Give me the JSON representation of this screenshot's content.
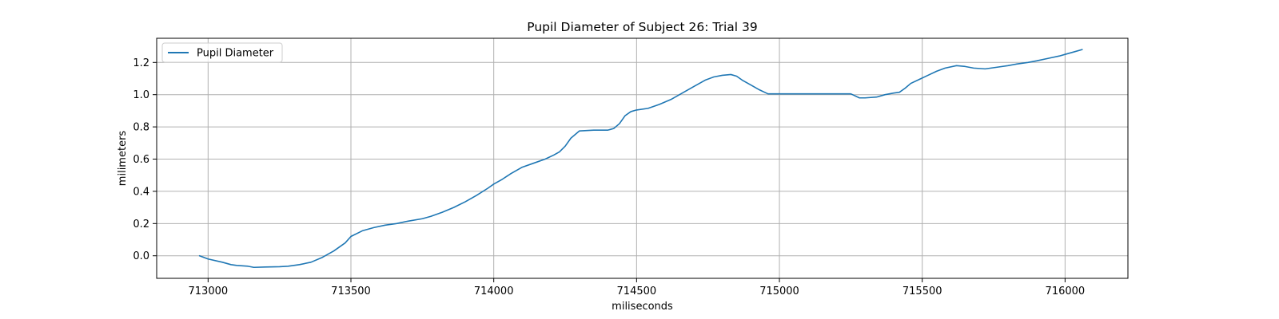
{
  "chart_data": {
    "type": "line",
    "title": "Pupil Diameter of Subject 26: Trial 39",
    "xlabel": "miliseconds",
    "ylabel": "milimeters",
    "xlim": [
      712820,
      716220
    ],
    "ylim": [
      -0.14,
      1.35
    ],
    "xticks": [
      713000,
      713500,
      714000,
      714500,
      715000,
      715500,
      716000
    ],
    "xtick_labels": [
      "713000",
      "713500",
      "714000",
      "714500",
      "715000",
      "715500",
      "716000"
    ],
    "yticks": [
      0.0,
      0.2,
      0.4,
      0.6,
      0.8,
      1.0,
      1.2
    ],
    "ytick_labels": [
      "0.0",
      "0.2",
      "0.4",
      "0.6",
      "0.8",
      "1.0",
      "1.2"
    ],
    "grid": true,
    "legend_position": "top-left",
    "colors": {
      "series": "#1f77b4",
      "grid": "#b0b0b0"
    },
    "series": [
      {
        "name": "Pupil Diameter",
        "x": [
          712970,
          713000,
          713050,
          713080,
          713100,
          713140,
          713160,
          713200,
          713250,
          713280,
          713320,
          713360,
          713400,
          713440,
          713480,
          713500,
          713540,
          713580,
          713620,
          713660,
          713700,
          713750,
          713780,
          713820,
          713860,
          713900,
          713940,
          713980,
          714000,
          714030,
          714060,
          714100,
          714140,
          714180,
          714210,
          714230,
          714250,
          714270,
          714300,
          714350,
          714400,
          714420,
          714440,
          714460,
          714480,
          714500,
          714540,
          714580,
          714620,
          714660,
          714700,
          714740,
          714770,
          714800,
          714830,
          714850,
          714870,
          714900,
          714930,
          714960,
          714990,
          715050,
          715100,
          715150,
          715200,
          715250,
          715280,
          715300,
          715340,
          715370,
          715400,
          715420,
          715440,
          715460,
          715490,
          715520,
          715550,
          715580,
          715620,
          715650,
          715680,
          715720,
          715760,
          715800,
          715830,
          715870,
          715900,
          715940,
          715980,
          716000,
          716030,
          716060
        ],
        "y": [
          0.0,
          -0.02,
          -0.04,
          -0.055,
          -0.06,
          -0.065,
          -0.072,
          -0.07,
          -0.068,
          -0.065,
          -0.055,
          -0.04,
          -0.01,
          0.03,
          0.08,
          0.12,
          0.155,
          0.175,
          0.19,
          0.2,
          0.215,
          0.23,
          0.245,
          0.27,
          0.3,
          0.335,
          0.375,
          0.42,
          0.445,
          0.475,
          0.51,
          0.55,
          0.575,
          0.6,
          0.625,
          0.645,
          0.68,
          0.73,
          0.775,
          0.78,
          0.78,
          0.79,
          0.82,
          0.87,
          0.895,
          0.905,
          0.915,
          0.94,
          0.97,
          1.01,
          1.05,
          1.09,
          1.11,
          1.12,
          1.125,
          1.115,
          1.09,
          1.06,
          1.03,
          1.005,
          1.005,
          1.005,
          1.005,
          1.005,
          1.005,
          1.005,
          0.98,
          0.98,
          0.985,
          1.0,
          1.01,
          1.015,
          1.04,
          1.07,
          1.095,
          1.12,
          1.145,
          1.165,
          1.18,
          1.175,
          1.165,
          1.16,
          1.17,
          1.18,
          1.19,
          1.2,
          1.21,
          1.225,
          1.24,
          1.25,
          1.265,
          1.28
        ]
      }
    ]
  }
}
